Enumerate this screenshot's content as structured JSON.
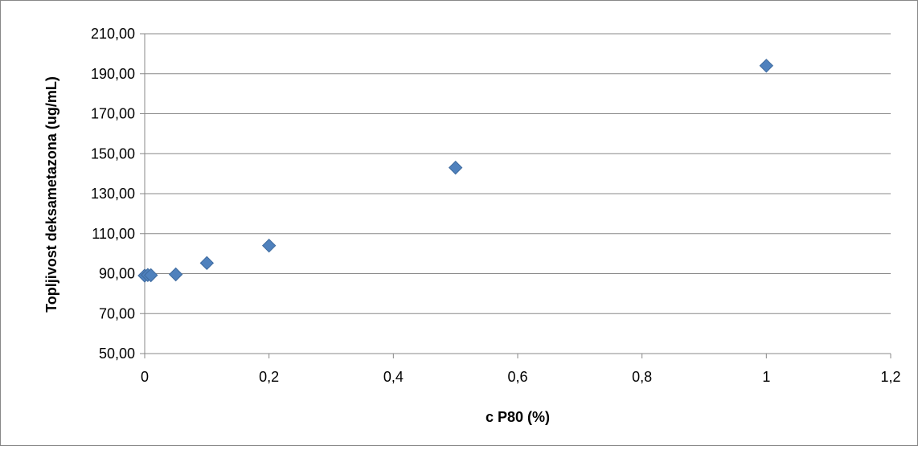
{
  "chart_data": {
    "type": "scatter",
    "title": "",
    "xlabel": "c P80 (%)",
    "ylabel": "Topljivost deksametazona (ug/mL)",
    "xlim": [
      0,
      1.2
    ],
    "ylim": [
      50,
      210
    ],
    "x_ticks": [
      0,
      0.2,
      0.4,
      0.6,
      0.8,
      1.0,
      1.2
    ],
    "x_tick_labels": [
      "0",
      "0,2",
      "0,4",
      "0,6",
      "0,8",
      "1",
      "1,2"
    ],
    "y_ticks": [
      50,
      70,
      90,
      110,
      130,
      150,
      170,
      190,
      210
    ],
    "y_tick_labels": [
      "50,00",
      "70,00",
      "90,00",
      "110,00",
      "130,00",
      "150,00",
      "170,00",
      "190,00",
      "210,00"
    ],
    "grid": "horizontal",
    "legend": "none",
    "marker": "diamond",
    "marker_color": "#4F81BD",
    "series": [
      {
        "points": [
          {
            "x": 0,
            "y": 89.0
          },
          {
            "x": 0.005,
            "y": 89.3
          },
          {
            "x": 0.01,
            "y": 89.2
          },
          {
            "x": 0.05,
            "y": 89.6
          },
          {
            "x": 0.1,
            "y": 95.3
          },
          {
            "x": 0.2,
            "y": 104.0
          },
          {
            "x": 0.5,
            "y": 143.0
          },
          {
            "x": 1.0,
            "y": 194.0
          }
        ]
      }
    ]
  }
}
